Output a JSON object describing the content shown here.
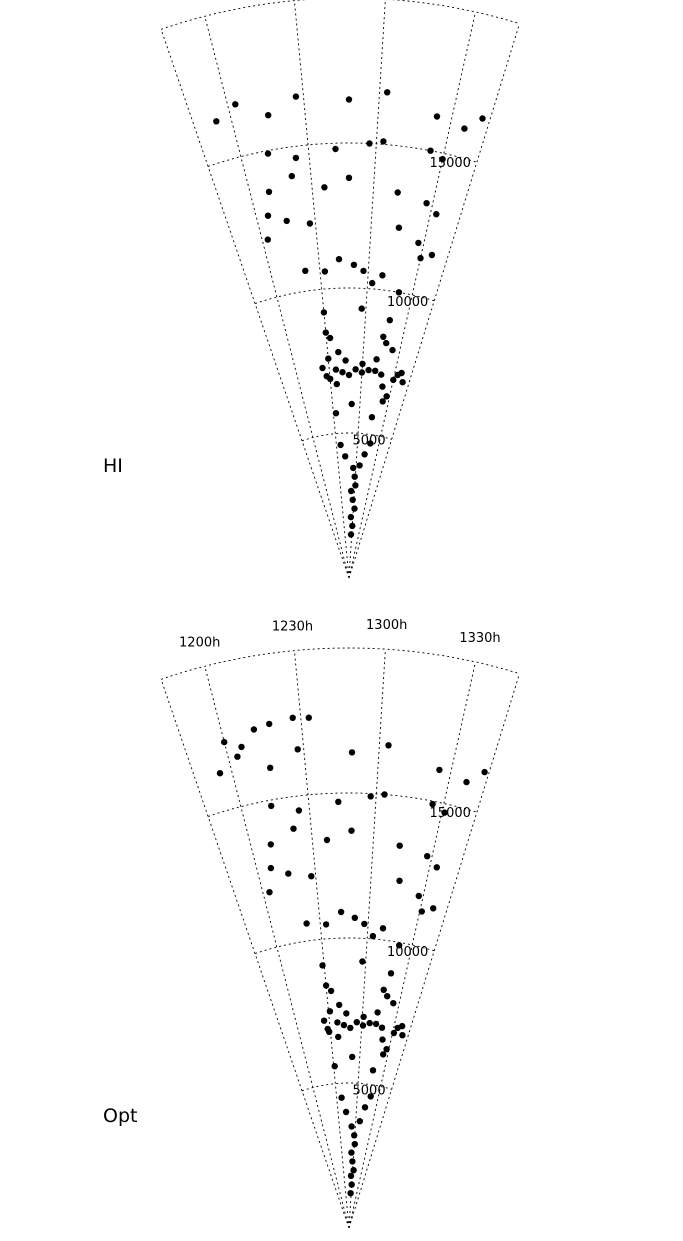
{
  "chart_data": [
    {
      "type": "scatter",
      "panel_label": "HI",
      "title": "",
      "projection": "polar wedge (right ascension vs. recession velocity)",
      "ra_ticks": [
        "1330h",
        "1300h",
        "1230h",
        "1200h"
      ],
      "velocity_ticks": [
        "5000",
        "10000",
        "15000"
      ],
      "rlim": [
        0,
        20000
      ],
      "ra_range": [
        "1345h",
        "1145h"
      ],
      "grid": true,
      "x_unit": "ra_hours",
      "y_unit": "velocity",
      "points": [
        [
          12.95,
          1500
        ],
        [
          13.0,
          1800
        ],
        [
          12.9,
          2100
        ],
        [
          13.05,
          2400
        ],
        [
          12.95,
          2700
        ],
        [
          12.88,
          3000
        ],
        [
          13.02,
          3200
        ],
        [
          12.98,
          3500
        ],
        [
          12.92,
          3800
        ],
        [
          13.1,
          3900
        ],
        [
          12.7,
          4200
        ],
        [
          13.2,
          4300
        ],
        [
          12.6,
          4600
        ],
        [
          13.3,
          4700
        ],
        [
          13.25,
          5600
        ],
        [
          12.55,
          5700
        ],
        [
          12.85,
          6000
        ],
        [
          13.4,
          6200
        ],
        [
          13.45,
          6400
        ],
        [
          13.35,
          6700
        ],
        [
          12.6,
          6700
        ],
        [
          12.5,
          6900
        ],
        [
          13.5,
          7000
        ],
        [
          13.3,
          7100
        ],
        [
          13.2,
          7200
        ],
        [
          13.1,
          7200
        ],
        [
          13.0,
          7100
        ],
        [
          12.9,
          7200
        ],
        [
          12.8,
          7000
        ],
        [
          12.7,
          7100
        ],
        [
          12.6,
          7200
        ],
        [
          12.45,
          7000
        ],
        [
          12.4,
          7300
        ],
        [
          13.55,
          7200
        ],
        [
          13.6,
          7300
        ],
        [
          13.65,
          7000
        ],
        [
          13.2,
          7600
        ],
        [
          13.0,
          7400
        ],
        [
          12.75,
          7500
        ],
        [
          12.65,
          7800
        ],
        [
          12.5,
          7600
        ],
        [
          13.4,
          8000
        ],
        [
          13.3,
          8200
        ],
        [
          13.25,
          8400
        ],
        [
          12.55,
          8300
        ],
        [
          12.5,
          8500
        ],
        [
          13.3,
          9000
        ],
        [
          12.95,
          9300
        ],
        [
          12.5,
          9200
        ],
        [
          13.35,
          10000
        ],
        [
          13.15,
          10500
        ],
        [
          13.05,
          10200
        ],
        [
          12.95,
          10600
        ],
        [
          12.85,
          10800
        ],
        [
          12.7,
          11000
        ],
        [
          12.55,
          10600
        ],
        [
          12.35,
          10700
        ],
        [
          13.5,
          11300
        ],
        [
          13.45,
          11800
        ],
        [
          13.6,
          11500
        ],
        [
          13.25,
          12200
        ],
        [
          12.45,
          12300
        ],
        [
          12.25,
          12500
        ],
        [
          12.05,
          12000
        ],
        [
          12.1,
          12800
        ],
        [
          13.55,
          12900
        ],
        [
          13.45,
          13200
        ],
        [
          13.2,
          13400
        ],
        [
          12.8,
          13800
        ],
        [
          12.6,
          13500
        ],
        [
          12.35,
          14000
        ],
        [
          12.15,
          13600
        ],
        [
          13.5,
          14800
        ],
        [
          13.4,
          15000
        ],
        [
          13.05,
          15100
        ],
        [
          12.95,
          15000
        ],
        [
          12.7,
          14800
        ],
        [
          12.4,
          14600
        ],
        [
          12.2,
          14900
        ],
        [
          13.7,
          16500
        ],
        [
          13.6,
          16000
        ],
        [
          13.4,
          16200
        ],
        [
          13.05,
          16800
        ],
        [
          12.8,
          16500
        ],
        [
          12.45,
          16700
        ],
        [
          12.25,
          16200
        ],
        [
          12.05,
          16800
        ],
        [
          11.9,
          16400
        ]
      ]
    },
    {
      "type": "scatter",
      "panel_label": "Opt",
      "title": "",
      "projection": "polar wedge (right ascension vs. recession velocity)",
      "ra_ticks": [
        "1330h",
        "1300h",
        "1230h",
        "1200h"
      ],
      "velocity_ticks": [
        "5000",
        "10000",
        "15000"
      ],
      "rlim": [
        0,
        20000
      ],
      "ra_range": [
        "1345h",
        "1145h"
      ],
      "grid": true,
      "x_unit": "ra_hours",
      "y_unit": "velocity",
      "points": [
        [
          12.95,
          1200
        ],
        [
          13.0,
          1500
        ],
        [
          12.92,
          1800
        ],
        [
          13.05,
          2000
        ],
        [
          12.96,
          2300
        ],
        [
          12.9,
          2600
        ],
        [
          13.02,
          2900
        ],
        [
          12.98,
          3200
        ],
        [
          12.88,
          3500
        ],
        [
          13.12,
          3700
        ],
        [
          12.72,
          4000
        ],
        [
          13.22,
          4200
        ],
        [
          12.62,
          4500
        ],
        [
          13.32,
          4600
        ],
        [
          13.28,
          5500
        ],
        [
          12.52,
          5600
        ],
        [
          12.86,
          5900
        ],
        [
          13.42,
          6100
        ],
        [
          13.46,
          6300
        ],
        [
          13.36,
          6600
        ],
        [
          12.62,
          6600
        ],
        [
          12.48,
          6800
        ],
        [
          13.52,
          6900
        ],
        [
          13.32,
          7000
        ],
        [
          13.22,
          7100
        ],
        [
          13.12,
          7100
        ],
        [
          13.02,
          7000
        ],
        [
          12.92,
          7100
        ],
        [
          12.82,
          6900
        ],
        [
          12.72,
          7000
        ],
        [
          12.62,
          7100
        ],
        [
          12.46,
          6900
        ],
        [
          12.42,
          7200
        ],
        [
          13.56,
          7100
        ],
        [
          13.62,
          7200
        ],
        [
          13.66,
          6900
        ],
        [
          13.22,
          7500
        ],
        [
          13.02,
          7300
        ],
        [
          12.76,
          7400
        ],
        [
          12.66,
          7700
        ],
        [
          12.52,
          7500
        ],
        [
          13.42,
          7900
        ],
        [
          13.32,
          8100
        ],
        [
          13.26,
          8300
        ],
        [
          12.56,
          8200
        ],
        [
          12.5,
          8400
        ],
        [
          13.32,
          8900
        ],
        [
          12.96,
          9200
        ],
        [
          12.48,
          9100
        ],
        [
          13.36,
          9900
        ],
        [
          13.16,
          10400
        ],
        [
          13.06,
          10100
        ],
        [
          12.96,
          10500
        ],
        [
          12.86,
          10700
        ],
        [
          12.72,
          10900
        ],
        [
          12.56,
          10500
        ],
        [
          12.36,
          10600
        ],
        [
          13.52,
          11200
        ],
        [
          13.46,
          11700
        ],
        [
          13.62,
          11400
        ],
        [
          13.26,
          12100
        ],
        [
          12.46,
          12200
        ],
        [
          12.26,
          12400
        ],
        [
          12.06,
          11900
        ],
        [
          12.12,
          12700
        ],
        [
          13.56,
          12800
        ],
        [
          13.46,
          13100
        ],
        [
          13.22,
          13300
        ],
        [
          12.82,
          13700
        ],
        [
          12.62,
          13400
        ],
        [
          12.36,
          13900
        ],
        [
          12.16,
          13500
        ],
        [
          13.52,
          14700
        ],
        [
          13.42,
          14900
        ],
        [
          13.06,
          15000
        ],
        [
          12.96,
          14900
        ],
        [
          12.72,
          14700
        ],
        [
          12.42,
          14500
        ],
        [
          12.22,
          14800
        ],
        [
          13.72,
          16400
        ],
        [
          13.62,
          15900
        ],
        [
          13.42,
          16100
        ],
        [
          13.06,
          16700
        ],
        [
          12.82,
          16400
        ],
        [
          12.46,
          16600
        ],
        [
          12.26,
          16100
        ],
        [
          12.06,
          16700
        ],
        [
          11.92,
          16300
        ],
        [
          12.2,
          17500
        ],
        [
          12.3,
          17600
        ],
        [
          12.45,
          17700
        ],
        [
          12.55,
          17650
        ],
        [
          12.0,
          17300
        ],
        [
          12.1,
          17000
        ]
      ]
    }
  ]
}
